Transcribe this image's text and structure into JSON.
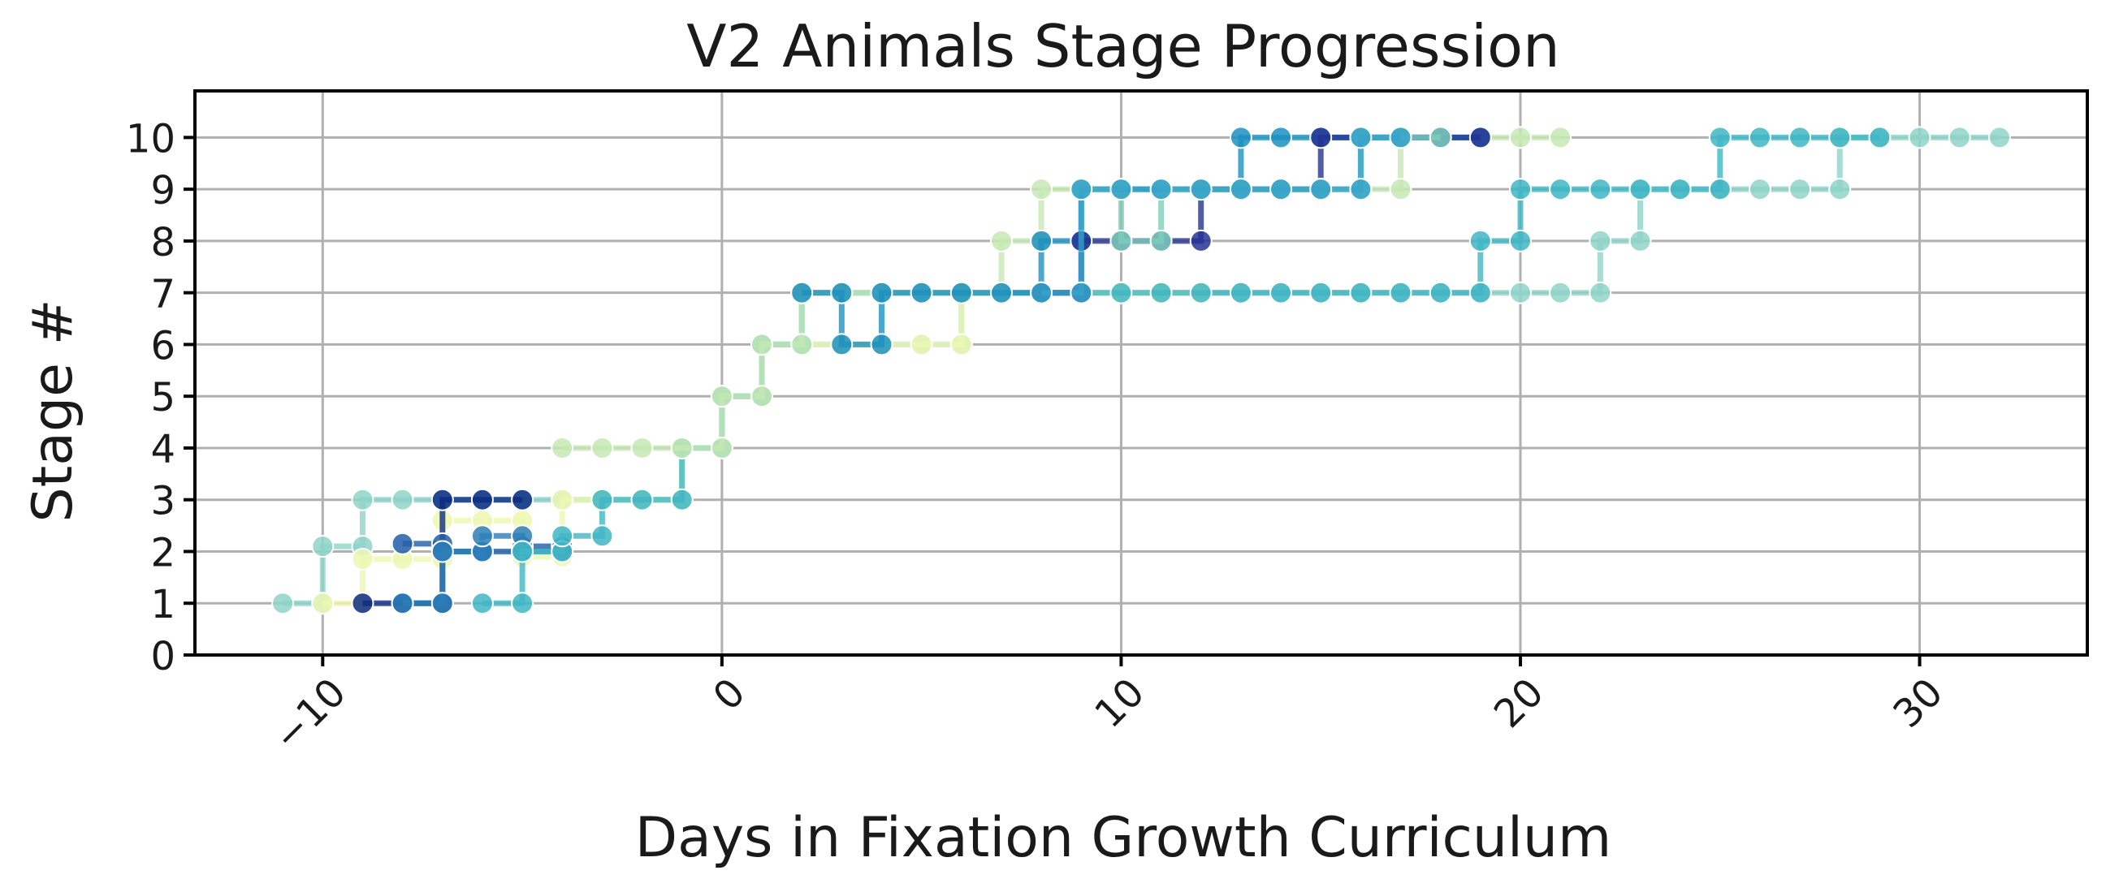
{
  "chart_data": {
    "type": "line",
    "title": "V2 Animals Stage Progression",
    "xlabel": "Days in Fixation Growth Curriculum",
    "ylabel": "Stage #",
    "xlim": [
      -13.2,
      34.2
    ],
    "ylim": [
      0,
      10.9
    ],
    "xticks": [
      -10,
      0,
      10,
      20,
      30
    ],
    "xtick_labels": [
      "−10",
      "0",
      "10",
      "20",
      "30"
    ],
    "xtick_rotation": -45,
    "yticks": [
      0,
      1,
      2,
      3,
      4,
      5,
      6,
      7,
      8,
      9,
      10
    ],
    "ytick_labels": [
      "0",
      "1",
      "2",
      "3",
      "4",
      "5",
      "6",
      "7",
      "8",
      "9",
      "10"
    ],
    "grid": true,
    "step": "post",
    "series": [
      {
        "color": "#8fd3c8",
        "points": [
          [
            -11,
            1
          ],
          [
            -10,
            1
          ],
          [
            -10,
            2.1
          ],
          [
            -9,
            2.1
          ],
          [
            -9,
            3
          ],
          [
            -8,
            3
          ],
          [
            -7,
            3
          ],
          [
            -6,
            3
          ],
          [
            -5,
            3
          ],
          [
            -4,
            3
          ],
          [
            -3,
            3
          ],
          [
            -2,
            3
          ],
          [
            -1,
            3
          ],
          [
            -1,
            4
          ],
          [
            0,
            4
          ],
          [
            0,
            5
          ],
          [
            1,
            5
          ],
          [
            1,
            6
          ],
          [
            2,
            6
          ],
          [
            3,
            6
          ],
          [
            4,
            6
          ],
          [
            5,
            6
          ],
          [
            6,
            6
          ],
          [
            6,
            7
          ],
          [
            7,
            7
          ],
          [
            8,
            7
          ],
          [
            9,
            7
          ],
          [
            10,
            7
          ],
          [
            11,
            7
          ],
          [
            12,
            7
          ],
          [
            13,
            7
          ],
          [
            14,
            7
          ],
          [
            15,
            7
          ],
          [
            16,
            7
          ],
          [
            17,
            7
          ],
          [
            18,
            7
          ],
          [
            19,
            7
          ],
          [
            20,
            7
          ],
          [
            21,
            7
          ],
          [
            22,
            7
          ],
          [
            22,
            8
          ],
          [
            23,
            8
          ],
          [
            23,
            9
          ],
          [
            24,
            9
          ],
          [
            25,
            9
          ],
          [
            26,
            9
          ],
          [
            27,
            9
          ],
          [
            28,
            9
          ],
          [
            28,
            10
          ],
          [
            29,
            10
          ],
          [
            30,
            10
          ],
          [
            31,
            10
          ],
          [
            32,
            10
          ]
        ]
      },
      {
        "color": "#edf8b1",
        "points": [
          [
            -10,
            1
          ],
          [
            -9,
            1
          ],
          [
            -9,
            1.85
          ],
          [
            -8,
            1.85
          ],
          [
            -7,
            1.85
          ],
          [
            -7,
            2.6
          ],
          [
            -6,
            2.6
          ],
          [
            -5,
            2.6
          ],
          [
            -5,
            1.9
          ],
          [
            -4,
            1.9
          ],
          [
            -4,
            3
          ],
          [
            -3,
            3
          ],
          [
            -2,
            3
          ],
          [
            -1,
            3
          ],
          [
            -1,
            4
          ],
          [
            0,
            4
          ],
          [
            0,
            5
          ],
          [
            1,
            5
          ],
          [
            1,
            6
          ],
          [
            2,
            6
          ],
          [
            3,
            6
          ],
          [
            4,
            6
          ],
          [
            5,
            6
          ],
          [
            6,
            6
          ],
          [
            6,
            7
          ],
          [
            7,
            7
          ],
          [
            8,
            7
          ],
          [
            9,
            7
          ],
          [
            10,
            7
          ],
          [
            11,
            7
          ],
          [
            12,
            7
          ]
        ]
      },
      {
        "color": "#0c2c84",
        "points": [
          [
            -9,
            1
          ],
          [
            -8,
            1
          ],
          [
            -7,
            1
          ],
          [
            -7,
            3
          ],
          [
            -6,
            3
          ],
          [
            -5,
            3
          ]
        ]
      },
      {
        "color": "#225ea8",
        "points": [
          [
            -8,
            2.15
          ],
          [
            -7,
            2.15
          ],
          [
            -7,
            2
          ],
          [
            -6,
            2
          ],
          [
            -5,
            2
          ],
          [
            -5,
            2.1
          ],
          [
            -4,
            2.1
          ]
        ]
      },
      {
        "color": "#2c7fb8",
        "points": [
          [
            -8,
            1
          ],
          [
            -7,
            1
          ],
          [
            -7,
            2
          ],
          [
            -6,
            2
          ],
          [
            -6,
            2.3
          ],
          [
            -5,
            2.3
          ],
          [
            -5,
            2
          ],
          [
            -4,
            2
          ]
        ]
      },
      {
        "color": "#41b6c4",
        "points": [
          [
            -6,
            1
          ],
          [
            -5,
            1
          ],
          [
            -5,
            2
          ],
          [
            -4,
            2
          ],
          [
            -4,
            2.3
          ],
          [
            -3,
            2.3
          ],
          [
            -3,
            3
          ],
          [
            -2,
            3
          ],
          [
            -1,
            3
          ],
          [
            -1,
            4
          ],
          [
            0,
            4
          ],
          [
            0,
            5
          ],
          [
            1,
            5
          ],
          [
            1,
            6
          ],
          [
            2,
            6
          ],
          [
            2,
            7
          ],
          [
            3,
            7
          ],
          [
            4,
            7
          ],
          [
            5,
            7
          ],
          [
            6,
            7
          ],
          [
            7,
            7
          ],
          [
            8,
            7
          ],
          [
            9,
            7
          ],
          [
            10,
            7
          ],
          [
            11,
            7
          ],
          [
            12,
            7
          ],
          [
            13,
            7
          ],
          [
            14,
            7
          ],
          [
            15,
            7
          ],
          [
            16,
            7
          ],
          [
            17,
            7
          ],
          [
            18,
            7
          ],
          [
            19,
            7
          ],
          [
            19,
            8
          ],
          [
            20,
            8
          ],
          [
            20,
            9
          ],
          [
            21,
            9
          ],
          [
            22,
            9
          ],
          [
            23,
            9
          ],
          [
            24,
            9
          ],
          [
            25,
            9
          ],
          [
            25,
            10
          ],
          [
            26,
            10
          ],
          [
            27,
            10
          ],
          [
            28,
            10
          ],
          [
            29,
            10
          ]
        ]
      },
      {
        "color": "#c7e9b4",
        "points": [
          [
            -4,
            4
          ],
          [
            -3,
            4
          ],
          [
            -2,
            4
          ],
          [
            -1,
            4
          ],
          [
            0,
            4
          ],
          [
            0,
            5
          ],
          [
            1,
            5
          ],
          [
            1,
            6
          ],
          [
            2,
            6
          ],
          [
            2,
            7
          ],
          [
            3,
            7
          ],
          [
            4,
            7
          ],
          [
            5,
            7
          ],
          [
            6,
            7
          ],
          [
            7,
            7
          ],
          [
            7,
            8
          ],
          [
            8,
            8
          ],
          [
            8,
            9
          ],
          [
            9,
            9
          ],
          [
            10,
            9
          ],
          [
            11,
            9
          ],
          [
            12,
            9
          ],
          [
            13,
            9
          ],
          [
            14,
            9
          ],
          [
            15,
            9
          ],
          [
            16,
            9
          ],
          [
            17,
            9
          ],
          [
            17,
            10
          ],
          [
            18,
            10
          ],
          [
            19,
            10
          ],
          [
            20,
            10
          ],
          [
            21,
            10
          ]
        ]
      },
      {
        "color": "#1d91c0",
        "points": [
          [
            2,
            7
          ],
          [
            3,
            7
          ],
          [
            3,
            6
          ],
          [
            4,
            6
          ],
          [
            4,
            7
          ],
          [
            5,
            7
          ],
          [
            6,
            7
          ],
          [
            7,
            7
          ],
          [
            8,
            7
          ],
          [
            8,
            8
          ],
          [
            9,
            8
          ],
          [
            9,
            9
          ],
          [
            10,
            9
          ],
          [
            11,
            9
          ],
          [
            12,
            9
          ],
          [
            13,
            9
          ],
          [
            13,
            10
          ],
          [
            14,
            10
          ],
          [
            15,
            10
          ],
          [
            16,
            10
          ],
          [
            17,
            10
          ],
          [
            18,
            10
          ],
          [
            19,
            10
          ]
        ]
      },
      {
        "color": "#253494",
        "points": [
          [
            8,
            7
          ],
          [
            9,
            7
          ],
          [
            9,
            8
          ],
          [
            10,
            8
          ],
          [
            11,
            8
          ],
          [
            12,
            8
          ],
          [
            12,
            9
          ],
          [
            13,
            9
          ],
          [
            14,
            9
          ],
          [
            15,
            9
          ],
          [
            15,
            10
          ],
          [
            16,
            10
          ],
          [
            17,
            10
          ],
          [
            18,
            10
          ],
          [
            19,
            10
          ]
        ]
      },
      {
        "color": "#7fcdbb",
        "points": [
          [
            9,
            9
          ],
          [
            10,
            9
          ],
          [
            10,
            8
          ],
          [
            11,
            8
          ],
          [
            11,
            9
          ],
          [
            12,
            9
          ],
          [
            13,
            9
          ],
          [
            14,
            9
          ],
          [
            15,
            9
          ],
          [
            16,
            9
          ],
          [
            16,
            10
          ],
          [
            17,
            10
          ],
          [
            18,
            10
          ]
        ]
      },
      {
        "color": "#36a3c9",
        "points": [
          [
            8,
            7
          ],
          [
            9,
            7
          ],
          [
            9,
            9
          ],
          [
            10,
            9
          ],
          [
            11,
            9
          ],
          [
            12,
            9
          ],
          [
            13,
            9
          ],
          [
            14,
            9
          ],
          [
            15,
            9
          ],
          [
            16,
            9
          ],
          [
            16,
            10
          ],
          [
            17,
            10
          ]
        ]
      }
    ]
  }
}
